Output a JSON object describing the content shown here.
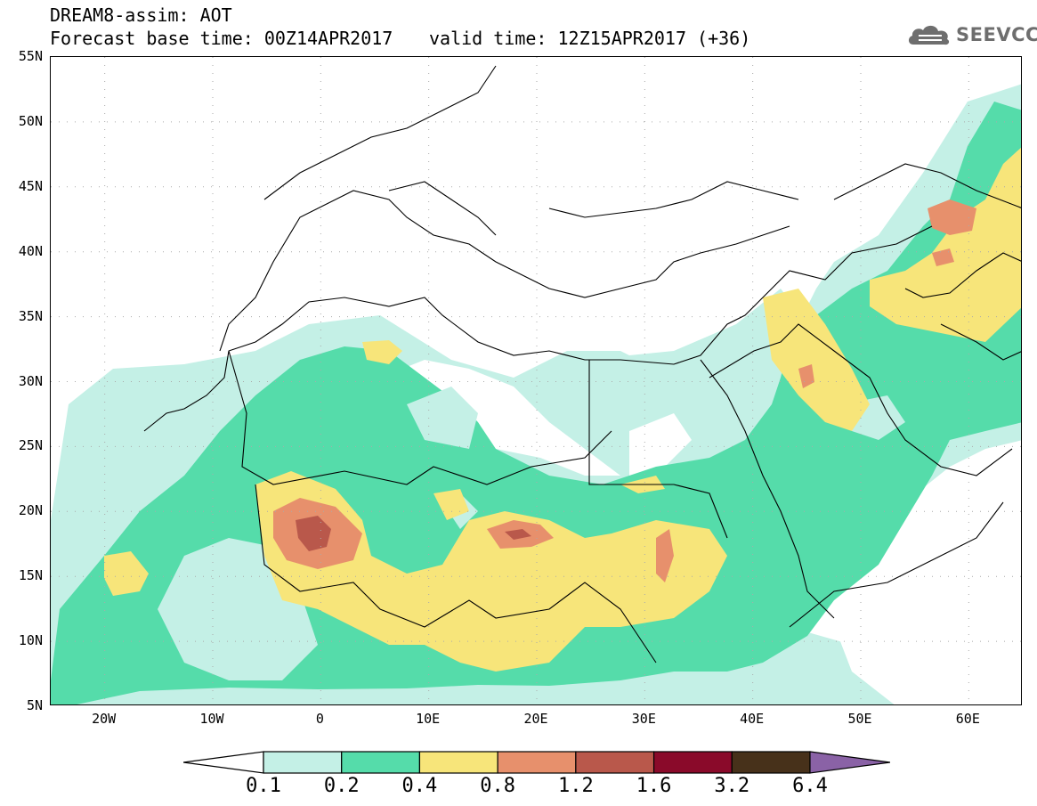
{
  "header": {
    "title": "DREAM8-assim: AOT",
    "base_time": "Forecast base time: 00Z14APR2017",
    "valid_time": "valid time: 12Z15APR2017 (+36)"
  },
  "logo": {
    "text": "SEEVCCC",
    "icon": "cloud-logo-icon"
  },
  "map": {
    "lat_labels": [
      "55N",
      "50N",
      "45N",
      "40N",
      "35N",
      "30N",
      "25N",
      "20N",
      "15N",
      "10N",
      "5N"
    ],
    "lon_labels": [
      "20W",
      "10W",
      "0",
      "10E",
      "20E",
      "30E",
      "40E",
      "50E",
      "60E"
    ],
    "lat_range": [
      5,
      55
    ],
    "lon_range": [
      -25,
      65
    ],
    "grid": "dotted",
    "variable": "AOT"
  },
  "colorbar": {
    "labels": [
      "0.1",
      "0.2",
      "0.4",
      "0.8",
      "1.2",
      "1.6",
      "3.2",
      "6.4"
    ],
    "colors": [
      "#ffffff",
      "#c4f0e6",
      "#55dcaa",
      "#f7e57a",
      "#e7906c",
      "#b9584b",
      "#8a0a2a",
      "#47311a",
      "#8a62a6"
    ]
  }
}
